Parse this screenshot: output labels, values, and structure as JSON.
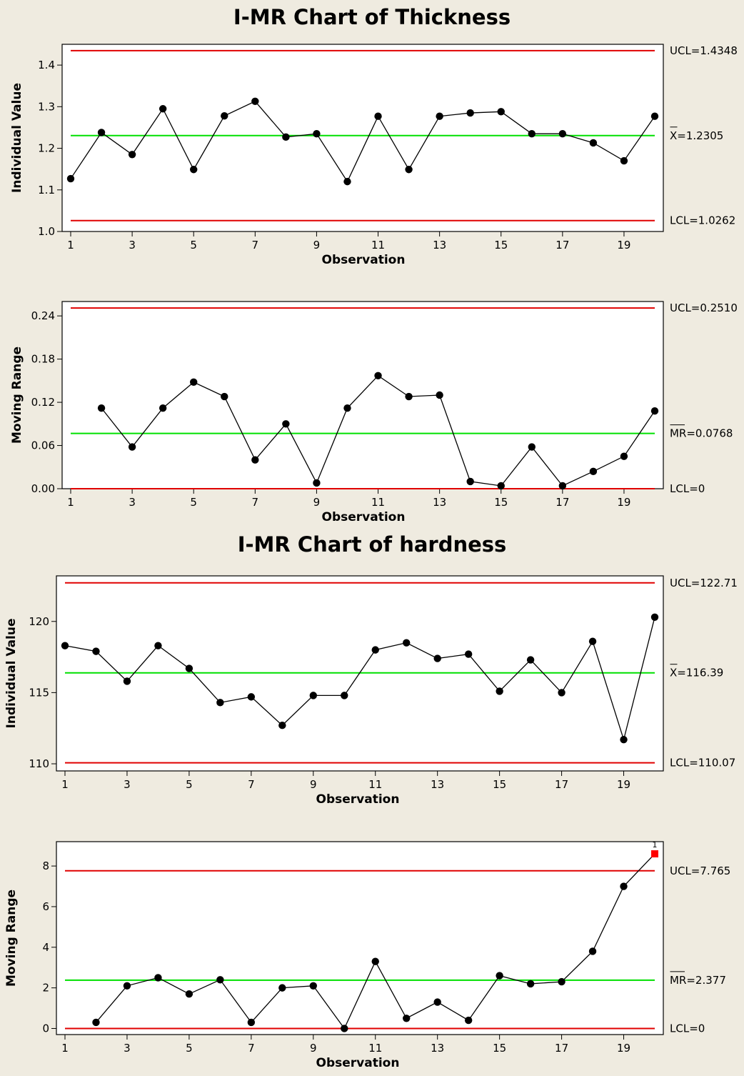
{
  "titles": [
    "I-MR Chart of Thickness",
    "I-MR Chart of hardness"
  ],
  "chart_data": [
    {
      "type": "line",
      "chart": "individuals",
      "group": "I-MR Chart of Thickness",
      "xlabel": "Observation",
      "ylabel": "Individual Value",
      "xlim": [
        1,
        20
      ],
      "ylim": [
        1.0,
        1.45
      ],
      "x_ticks": [
        1,
        3,
        5,
        7,
        9,
        11,
        13,
        15,
        17,
        19
      ],
      "y_ticks": [
        1.0,
        1.1,
        1.2,
        1.3,
        1.4
      ],
      "y_tick_labels": [
        "1.0",
        "1.1",
        "1.2",
        "1.3",
        "1.4"
      ],
      "x": [
        1,
        2,
        3,
        4,
        5,
        6,
        7,
        8,
        9,
        10,
        11,
        12,
        13,
        14,
        15,
        16,
        17,
        18,
        19,
        20
      ],
      "values": [
        1.127,
        1.238,
        1.185,
        1.295,
        1.149,
        1.278,
        1.313,
        1.227,
        1.235,
        1.12,
        1.277,
        1.149,
        1.277,
        1.285,
        1.288,
        1.235,
        1.235,
        1.213,
        1.17,
        1.277
      ],
      "ucl": {
        "value": 1.4348,
        "label": "UCL=1.4348"
      },
      "center": {
        "value": 1.2305,
        "label": "X=1.2305",
        "bar": "X"
      },
      "lcl": {
        "value": 1.0262,
        "label": "LCL=1.0262"
      },
      "flags": []
    },
    {
      "type": "line",
      "chart": "moving-range",
      "group": "I-MR Chart of Thickness",
      "xlabel": "Observation",
      "ylabel": "Moving Range",
      "xlim": [
        1,
        20
      ],
      "ylim": [
        0,
        0.26
      ],
      "x_ticks": [
        1,
        3,
        5,
        7,
        9,
        11,
        13,
        15,
        17,
        19
      ],
      "y_ticks": [
        0.0,
        0.06,
        0.12,
        0.18,
        0.24
      ],
      "y_tick_labels": [
        "0.00",
        "0.06",
        "0.12",
        "0.18",
        "0.24"
      ],
      "x": [
        2,
        3,
        4,
        5,
        6,
        7,
        8,
        9,
        10,
        11,
        12,
        13,
        14,
        15,
        16,
        17,
        18,
        19,
        20
      ],
      "values": [
        0.112,
        0.058,
        0.112,
        0.148,
        0.128,
        0.04,
        0.09,
        0.008,
        0.112,
        0.157,
        0.128,
        0.13,
        0.01,
        0.004,
        0.058,
        0.004,
        0.024,
        0.045,
        0.108
      ],
      "ucl": {
        "value": 0.251,
        "label": "UCL=0.2510"
      },
      "center": {
        "value": 0.0768,
        "label": "MR=0.0768",
        "bar": "MR"
      },
      "lcl": {
        "value": 0.0,
        "label": "LCL=0"
      },
      "flags": []
    },
    {
      "type": "line",
      "chart": "individuals",
      "group": "I-MR Chart of hardness",
      "xlabel": "Observation",
      "ylabel": "Individual Value",
      "xlim": [
        1,
        20
      ],
      "ylim": [
        109.5,
        123.2
      ],
      "x_ticks": [
        1,
        3,
        5,
        7,
        9,
        11,
        13,
        15,
        17,
        19
      ],
      "y_ticks": [
        110,
        115,
        120
      ],
      "y_tick_labels": [
        "110",
        "115",
        "120"
      ],
      "x": [
        1,
        2,
        3,
        4,
        5,
        6,
        7,
        8,
        9,
        10,
        11,
        12,
        13,
        14,
        15,
        16,
        17,
        18,
        19,
        20
      ],
      "values": [
        118.3,
        117.9,
        115.8,
        118.3,
        116.7,
        114.3,
        114.7,
        112.7,
        114.8,
        114.8,
        118.0,
        118.5,
        117.4,
        117.7,
        115.1,
        117.3,
        115.0,
        118.6,
        111.7,
        120.3
      ],
      "ucl": {
        "value": 122.71,
        "label": "UCL=122.71"
      },
      "center": {
        "value": 116.39,
        "label": "X=116.39",
        "bar": "X"
      },
      "lcl": {
        "value": 110.07,
        "label": "LCL=110.07"
      },
      "flags": []
    },
    {
      "type": "line",
      "chart": "moving-range",
      "group": "I-MR Chart of hardness",
      "xlabel": "Observation",
      "ylabel": "Moving Range",
      "xlim": [
        1,
        20
      ],
      "ylim": [
        -0.3,
        9.2
      ],
      "x_ticks": [
        1,
        3,
        5,
        7,
        9,
        11,
        13,
        15,
        17,
        19
      ],
      "y_ticks": [
        0,
        2,
        4,
        6,
        8
      ],
      "y_tick_labels": [
        "0",
        "2",
        "4",
        "6",
        "8"
      ],
      "x": [
        2,
        3,
        4,
        5,
        6,
        7,
        8,
        9,
        10,
        11,
        12,
        13,
        14,
        15,
        16,
        17,
        18,
        19,
        20
      ],
      "values": [
        0.3,
        2.1,
        2.5,
        1.7,
        2.4,
        0.3,
        2.0,
        2.1,
        0.0,
        3.3,
        0.5,
        1.3,
        0.4,
        2.6,
        2.2,
        2.3,
        3.8,
        7.0,
        8.6
      ],
      "ucl": {
        "value": 7.765,
        "label": "UCL=7.765"
      },
      "center": {
        "value": 2.377,
        "label": "MR=2.377",
        "bar": "MR"
      },
      "lcl": {
        "value": 0.0,
        "label": "LCL=0"
      },
      "flags": [
        {
          "x": 20,
          "label": "1"
        }
      ]
    }
  ],
  "colors": {
    "background": "#efebe0",
    "plot_area": "#ffffff",
    "limit_line": "#e00000",
    "center_line": "#00e000",
    "series": "#000000",
    "flagged_point": "#ff0000"
  }
}
